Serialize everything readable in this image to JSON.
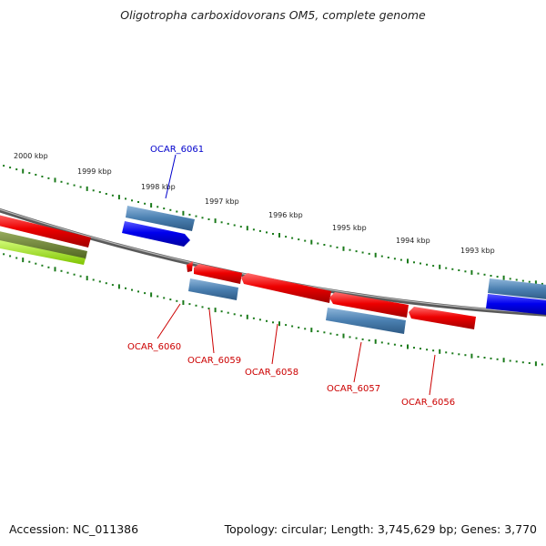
{
  "title": "Oligotropha carboxidovorans OM5, complete genome",
  "footer": {
    "accession": "Accession: NC_011386",
    "summary": "Topology: circular; Length: 3,745,629 bp; Genes: 3,770"
  },
  "colors": {
    "backbone": "#777777",
    "tick": "#1a7a1a",
    "forward_cds": "#0000ee",
    "reverse_cds": "#ee0000",
    "gene_box": "#4a7fb0",
    "rna": "#a8e030",
    "label_forward": "#0000cc",
    "label_reverse": "#cc0000"
  },
  "kbp_labels": [
    "2000 kbp",
    "1999 kbp",
    "1998 kbp",
    "1997 kbp",
    "1996 kbp",
    "1995 kbp",
    "1994 kbp",
    "1993 kbp"
  ],
  "gene_labels": [
    {
      "id": "OCAR_6061",
      "strand": "forward"
    },
    {
      "id": "OCAR_6060",
      "strand": "reverse"
    },
    {
      "id": "OCAR_6059",
      "strand": "reverse"
    },
    {
      "id": "OCAR_6058",
      "strand": "reverse"
    },
    {
      "id": "OCAR_6057",
      "strand": "reverse"
    },
    {
      "id": "OCAR_6056",
      "strand": "reverse"
    }
  ]
}
